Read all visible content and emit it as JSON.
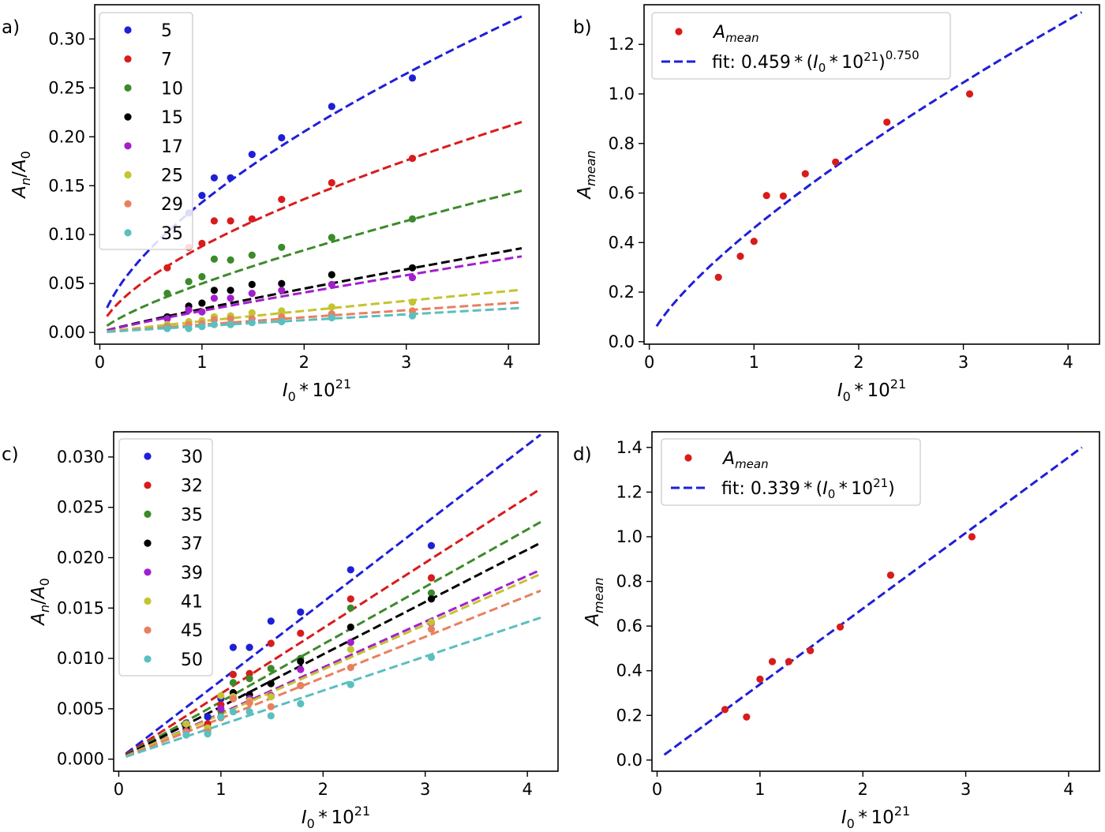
{
  "chart_data": [
    {
      "type": "scatter",
      "panel_label": "a)",
      "xlabel": "I0*10^21",
      "ylabel": "An/A0",
      "xlim": [
        -0.05,
        4.3
      ],
      "ylim": [
        -0.012,
        0.335
      ],
      "xticks": [
        "0",
        "1",
        "2",
        "3",
        "4"
      ],
      "yticks": [
        "0.00",
        "0.05",
        "0.10",
        "0.15",
        "0.20",
        "0.25",
        "0.30"
      ],
      "legend_position": "top-left",
      "grid": false,
      "x": [
        0.66,
        0.87,
        1.0,
        1.12,
        1.28,
        1.49,
        1.78,
        2.27,
        3.06
      ],
      "series": [
        {
          "name": "5",
          "color": "#1f1fd8",
          "values": [
            null,
            0.122,
            0.14,
            0.158,
            0.158,
            0.182,
            0.199,
            0.231,
            0.26
          ],
          "fit": {
            "a": 0.133,
            "b": 0.626
          }
        },
        {
          "name": "7",
          "color": "#d81c1c",
          "values": [
            0.066,
            0.087,
            0.091,
            0.114,
            0.114,
            0.116,
            0.136,
            0.153,
            0.178
          ],
          "fit": {
            "a": 0.088,
            "b": 0.63
          }
        },
        {
          "name": "10",
          "color": "#3c8a2a",
          "values": [
            0.04,
            0.052,
            0.057,
            0.075,
            0.074,
            0.079,
            0.087,
            0.097,
            0.116
          ],
          "fit": {
            "a": 0.05,
            "b": 0.75
          }
        },
        {
          "name": "15",
          "color": "#000000",
          "values": [
            0.016,
            0.027,
            0.03,
            0.043,
            0.043,
            0.049,
            0.05,
            0.059,
            0.066
          ],
          "fit": {
            "a": 0.024,
            "b": 0.9
          }
        },
        {
          "name": "17",
          "color": "#a31fcc",
          "values": [
            0.014,
            0.023,
            0.021,
            0.035,
            0.035,
            0.04,
            0.043,
            0.049,
            0.056
          ],
          "fit": {
            "a": 0.022,
            "b": 0.89
          }
        },
        {
          "name": "25",
          "color": "#c4c430",
          "values": [
            0.008,
            0.011,
            0.012,
            0.016,
            0.017,
            0.02,
            0.022,
            0.026,
            0.031
          ],
          "fit": {
            "a": 0.0115,
            "b": 0.94
          }
        },
        {
          "name": "29",
          "color": "#e88060",
          "values": [
            0.006,
            0.008,
            0.009,
            0.013,
            0.014,
            0.014,
            0.016,
            0.019,
            0.022
          ],
          "fit": {
            "a": 0.008,
            "b": 0.95
          }
        },
        {
          "name": "35",
          "color": "#5bbfbf",
          "values": [
            0.004,
            0.004,
            0.006,
            0.008,
            0.008,
            0.01,
            0.011,
            0.015,
            0.017
          ],
          "fit": {
            "a": 0.0065,
            "b": 0.95
          }
        }
      ]
    },
    {
      "type": "scatter",
      "panel_label": "b)",
      "xlabel": "I0*10^21",
      "ylabel": "Amean",
      "xlim": [
        -0.05,
        4.3
      ],
      "ylim": [
        -0.01,
        1.36
      ],
      "xticks": [
        "0",
        "1",
        "2",
        "3",
        "4"
      ],
      "yticks": [
        "0.0",
        "0.2",
        "0.4",
        "0.6",
        "0.8",
        "1.0",
        "1.2"
      ],
      "legend_position": "top-left",
      "grid": false,
      "x": [
        0.66,
        0.87,
        1.0,
        1.12,
        1.28,
        1.49,
        1.78,
        2.27,
        3.06
      ],
      "series": [
        {
          "name": "Amean",
          "color": "#d81c1c",
          "values": [
            0.26,
            0.345,
            0.405,
            0.59,
            0.588,
            0.678,
            0.725,
            0.886,
            1.0
          ]
        }
      ],
      "fit": {
        "label_prefix": "fit: 0.459",
        "label_exponent": "0.750",
        "a": 0.459,
        "b": 0.75,
        "color": "#1f1fd8"
      }
    },
    {
      "type": "scatter",
      "panel_label": "c)",
      "xlabel": "I0*10^21",
      "ylabel": "An/A0",
      "xlim": [
        -0.05,
        4.3
      ],
      "ylim": [
        -0.0012,
        0.0325
      ],
      "xticks": [
        "0",
        "1",
        "2",
        "3",
        "4"
      ],
      "yticks": [
        "0.000",
        "0.005",
        "0.010",
        "0.015",
        "0.020",
        "0.025",
        "0.030"
      ],
      "legend_position": "top-left",
      "grid": false,
      "x": [
        0.66,
        0.87,
        1.0,
        1.12,
        1.28,
        1.49,
        1.78,
        2.27,
        3.06
      ],
      "series": [
        {
          "name": "30",
          "color": "#1f1fd8",
          "values": [
            0.0036,
            0.0042,
            0.006,
            0.0111,
            0.0111,
            0.0137,
            0.0146,
            0.0188,
            0.0212
          ],
          "fit": {
            "a": 0.0078,
            "b": 1
          }
        },
        {
          "name": "32",
          "color": "#d81c1c",
          "values": [
            0.0034,
            0.0035,
            0.0054,
            0.0084,
            0.0085,
            0.0115,
            0.0125,
            0.0159,
            0.018
          ],
          "fit": {
            "a": 0.0065,
            "b": 1
          }
        },
        {
          "name": "35",
          "color": "#3c8a2a",
          "values": [
            0.0033,
            0.003,
            0.0048,
            0.0076,
            0.008,
            0.009,
            0.01,
            0.015,
            0.0165
          ],
          "fit": {
            "a": 0.0057,
            "b": 1
          }
        },
        {
          "name": "37",
          "color": "#000000",
          "values": [
            0.003,
            0.0031,
            0.0042,
            0.0066,
            0.0064,
            0.0075,
            0.0097,
            0.0131,
            0.0159
          ],
          "fit": {
            "a": 0.0052,
            "b": 1
          }
        },
        {
          "name": "39",
          "color": "#a31fcc",
          "values": [
            0.0028,
            0.003,
            0.005,
            0.006,
            0.006,
            0.0063,
            0.0089,
            0.0116,
            0.0135
          ],
          "fit": {
            "a": 0.00455,
            "b": 1
          }
        },
        {
          "name": "41",
          "color": "#c4c430",
          "values": [
            0.0035,
            0.0031,
            0.0063,
            0.0062,
            0.0058,
            0.0062,
            0.0073,
            0.0109,
            0.0136
          ],
          "fit": {
            "a": 0.00445,
            "b": 1
          }
        },
        {
          "name": "45",
          "color": "#e88060",
          "values": [
            0.0027,
            0.0027,
            0.0041,
            0.006,
            0.0056,
            0.0052,
            0.0073,
            0.0091,
            0.0129
          ],
          "fit": {
            "a": 0.00405,
            "b": 1
          }
        },
        {
          "name": "50",
          "color": "#5bbfbf",
          "values": [
            0.0024,
            0.0025,
            0.0042,
            0.0047,
            0.0047,
            0.0043,
            0.0055,
            0.0074,
            0.0101
          ],
          "fit": {
            "a": 0.0034,
            "b": 1
          }
        }
      ]
    },
    {
      "type": "scatter",
      "panel_label": "d)",
      "xlabel": "I0*10^21",
      "ylabel": "Amean",
      "xlim": [
        -0.05,
        4.3
      ],
      "ylim": [
        -0.05,
        1.47
      ],
      "xticks": [
        "0",
        "1",
        "2",
        "3",
        "4"
      ],
      "yticks": [
        "0.0",
        "0.2",
        "0.4",
        "0.6",
        "0.8",
        "1.0",
        "1.2",
        "1.4"
      ],
      "legend_position": "top-left",
      "grid": false,
      "x": [
        0.66,
        0.87,
        1.0,
        1.12,
        1.28,
        1.49,
        1.78,
        2.27,
        3.06
      ],
      "series": [
        {
          "name": "Amean",
          "color": "#d81c1c",
          "values": [
            0.226,
            0.193,
            0.362,
            0.441,
            0.441,
            0.49,
            0.596,
            0.828,
            1.0
          ]
        }
      ],
      "fit": {
        "label_prefix": "fit: 0.339",
        "label_exponent": "",
        "a": 0.339,
        "b": 1,
        "color": "#1f1fd8"
      }
    }
  ]
}
